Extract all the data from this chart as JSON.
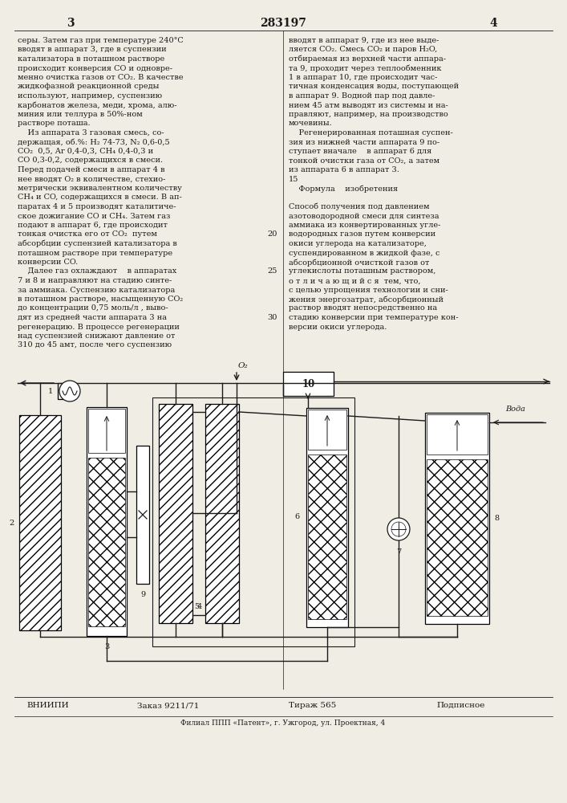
{
  "page_number_left": "3",
  "page_number_center": "283197",
  "page_number_right": "4",
  "bg_color": "#f0ede4",
  "text_color": "#1a1a1a",
  "left_column_lines": [
    "серы. Затем газ при температуре 240°C",
    "вводят в аппарат 3, где в суспензии",
    "катализатора в поташном растворе",
    "происходит конверсия CO и одновре-",
    "менно очистка газов от CO₂. В качестве",
    "жидкофазной реакционной среды",
    "используют, например, суспензию",
    "карбонатов железа, меди, хрома, алю-",
    "миния или теллура в 50%-ном",
    "растворе поташа.",
    "    Из аппарата 3 газовая смесь, со-",
    "держащая, об.%: H₂ 74-73, N₂ 0,6-0,5",
    "CO₂  0,5, Ar 0,4-0,3, CH₄ 0,4-0,3 и",
    "CO 0,3-0,2, содержащихся в смеси.",
    "Перед подачей смеси в аппарат 4 в",
    "нее вводят O₂ в количестве, стехио-",
    "метрически эквивалентном количеству",
    "CH₄ и CO, содержащихся в смеси. В ап-",
    "паратах 4 и 5 производят каталитиче-",
    "ское дожигание CO и CH₄. Затем газ",
    "подают в аппарат 6, где происходит",
    "тонкая очистка его от CO₂  путем",
    "абсорбции суспензией катализатора в",
    "поташном растворе при температуре",
    "конверсии CO.",
    "    Далее газ охлаждают    в аппаратах",
    "7 и 8 и направляют на стадию синте-",
    "за аммиака. Суспензию катализатора",
    "в поташном растворе, насыщенную CO₂",
    "до концентрации 0,75 моль/л , выво-",
    "дят из средней части аппарата 3 на",
    "регенерацию. В процессе регенерации",
    "над суспензией снижают давление от",
    "310 до 45 амт, после чего суспензию"
  ],
  "right_column_lines": [
    "вводят в аппарат 9, где из нее выде-",
    "ляется CO₂. Смесь CO₂ и паров H₂O,",
    "отбираемая из верхней части аппара-",
    "та 9, проходит через теплообменник",
    "1 в аппарат 10, где происходит час-",
    "тичная конденсация воды, поступающей",
    "в аппарат 9. Водной пар под давле-",
    "нием 45 атм выводят из системы и на-",
    "правляют, например, на производство",
    "мочевины.",
    "    Регенерированная поташная суспен-",
    "зия из нижней части аппарата 9 по-",
    "ступает вначале    в аппарат 6 для",
    "тонкой очистки газа от CO₂, а затем",
    "из аппарата 6 в аппарат 3.",
    "15",
    "    Формула    изобретения",
    "",
    "Способ получения под давлением",
    "азотоводородной смеси для синтеза",
    "аммиака из конвертированных угле-",
    "20 водородных газов путем конверсии",
    "окиси углерода на катализаторе,",
    "суспендированном в жидкой фазе, с",
    "абсорбционной очисткой газов от",
    "25 углекислоты поташным раствором,",
    "о т л и ч а ю щ и й с я  тем, что,",
    "с целью упрощения технологии и сни-",
    "жения энергозатрат, абсорбционный",
    "раствор вводят непосредственно на",
    "30 стадию конверсии при температуре кон-",
    "версии окиси углерода."
  ],
  "footer_vniip": "ВНИИПИ",
  "footer_zakaz": "Заказ 9211/71",
  "footer_tirasch": "Тираж 565",
  "footer_podpisn": "Подписное",
  "footer_filial": "Филиал ППП «Патент», г. Ужгород, ул. Проектная, 4"
}
